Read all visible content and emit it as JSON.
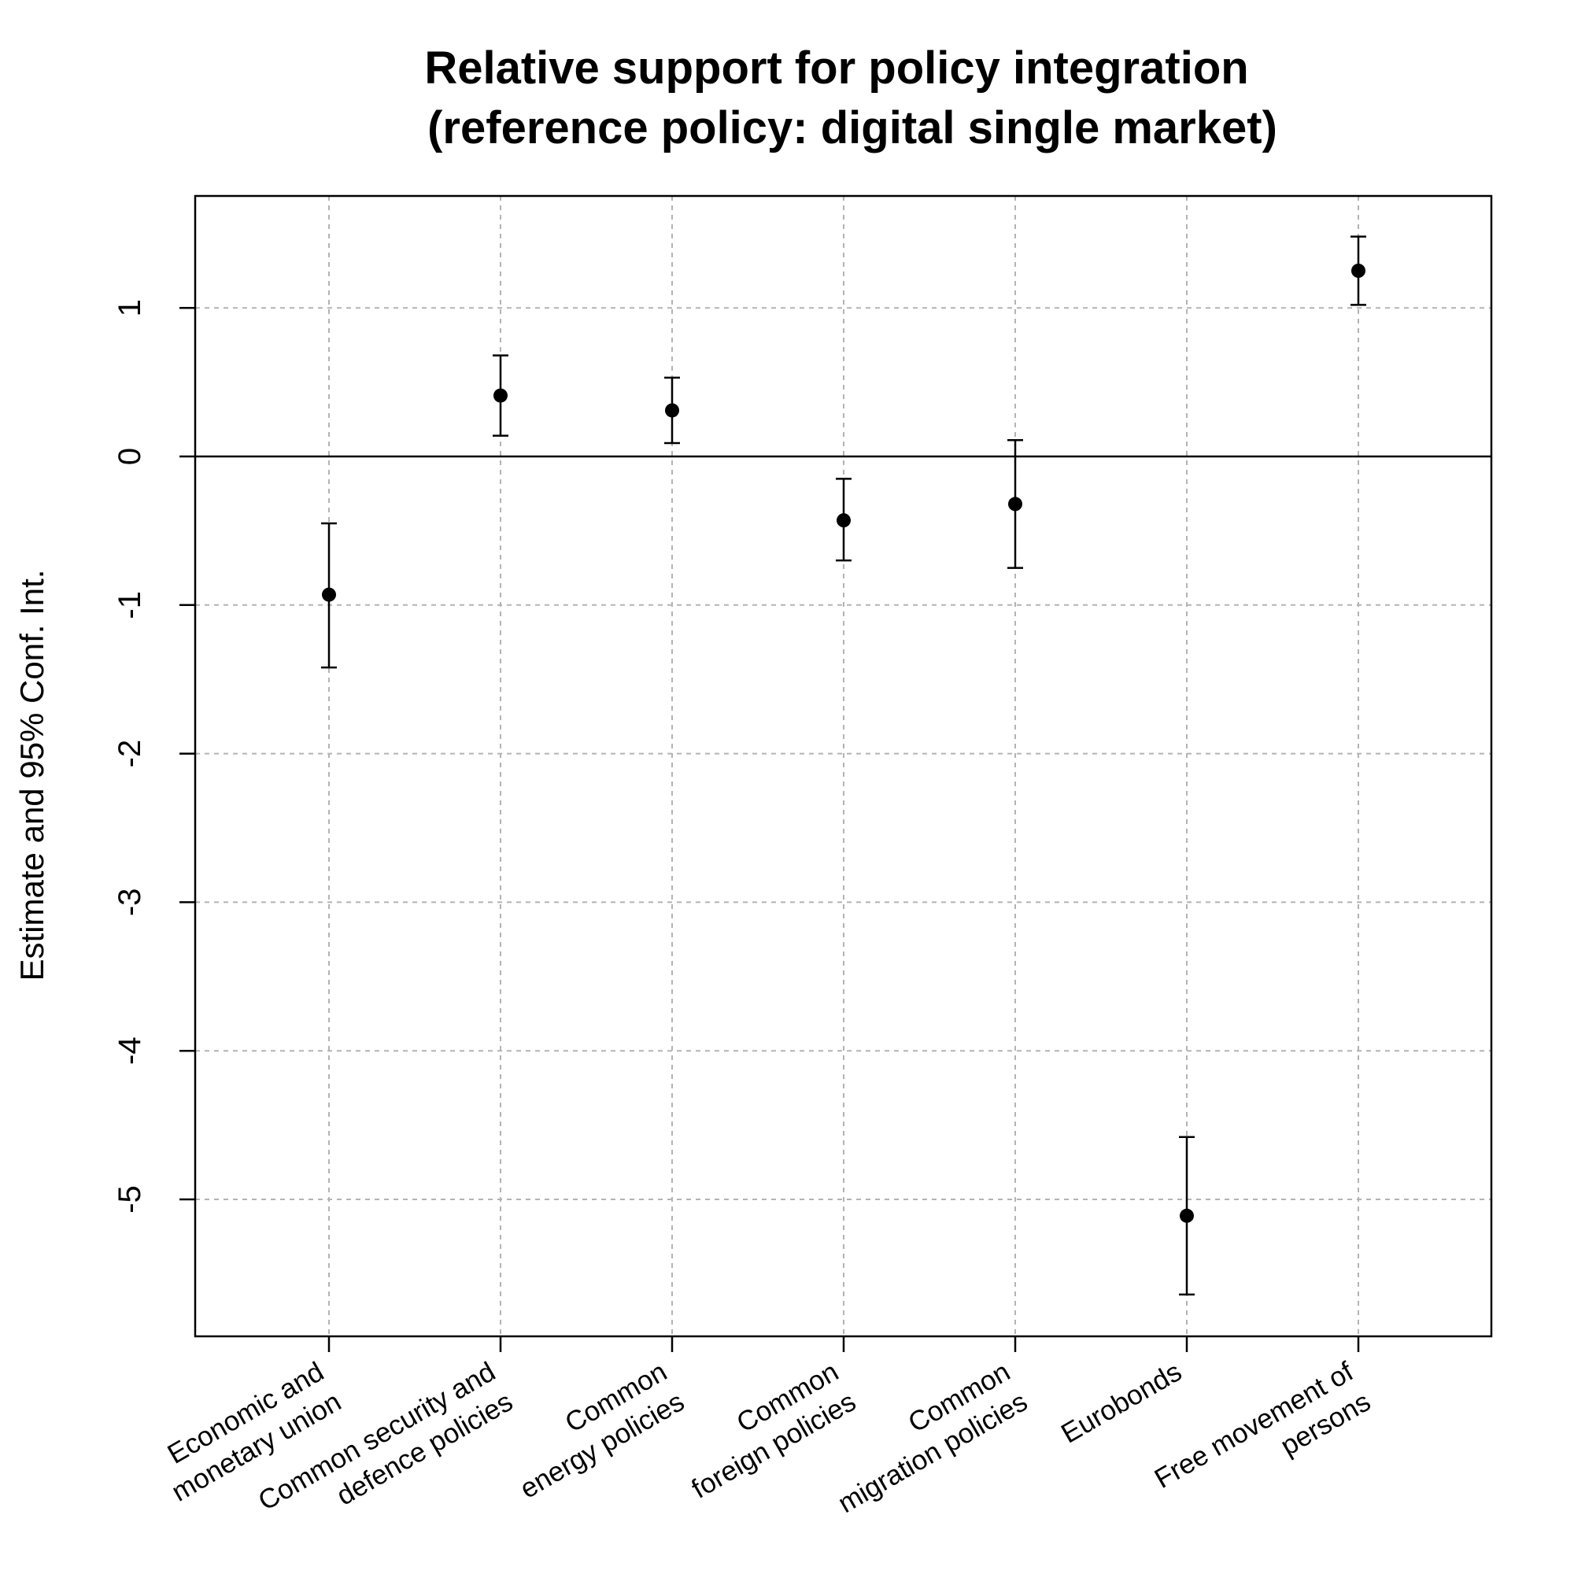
{
  "chart_data": {
    "type": "scatter",
    "title": "Relative support for policy integration",
    "subtitle": "(reference policy: digital single market)",
    "xlabel": "",
    "ylabel": "Estimate and 95% Conf. Int.",
    "ylim": [
      -5.9,
      1.8
    ],
    "yticks": [
      1,
      0,
      -1,
      -2,
      -3,
      -4,
      -5
    ],
    "reference_line": 0,
    "grid": true,
    "categories": [
      [
        "Economic and",
        "monetary union"
      ],
      [
        "Common security and",
        "defence policies"
      ],
      [
        "Common",
        "energy policies"
      ],
      [
        "Common",
        "foreign policies"
      ],
      [
        "Common",
        "migration policies"
      ],
      [
        "Eurobonds"
      ],
      [
        "Free movement of",
        "persons"
      ]
    ],
    "series": [
      {
        "estimates": [
          -0.93,
          0.41,
          0.31,
          -0.43,
          -0.32,
          -5.11,
          1.25
        ],
        "lower": [
          -1.42,
          0.14,
          0.09,
          -0.7,
          -0.75,
          -5.64,
          1.02
        ],
        "upper": [
          -0.45,
          0.68,
          0.53,
          -0.15,
          0.11,
          -4.58,
          1.48
        ]
      }
    ],
    "colors": {
      "points": "#000000",
      "grid": "#b3b3b3",
      "frame": "#000000"
    }
  }
}
